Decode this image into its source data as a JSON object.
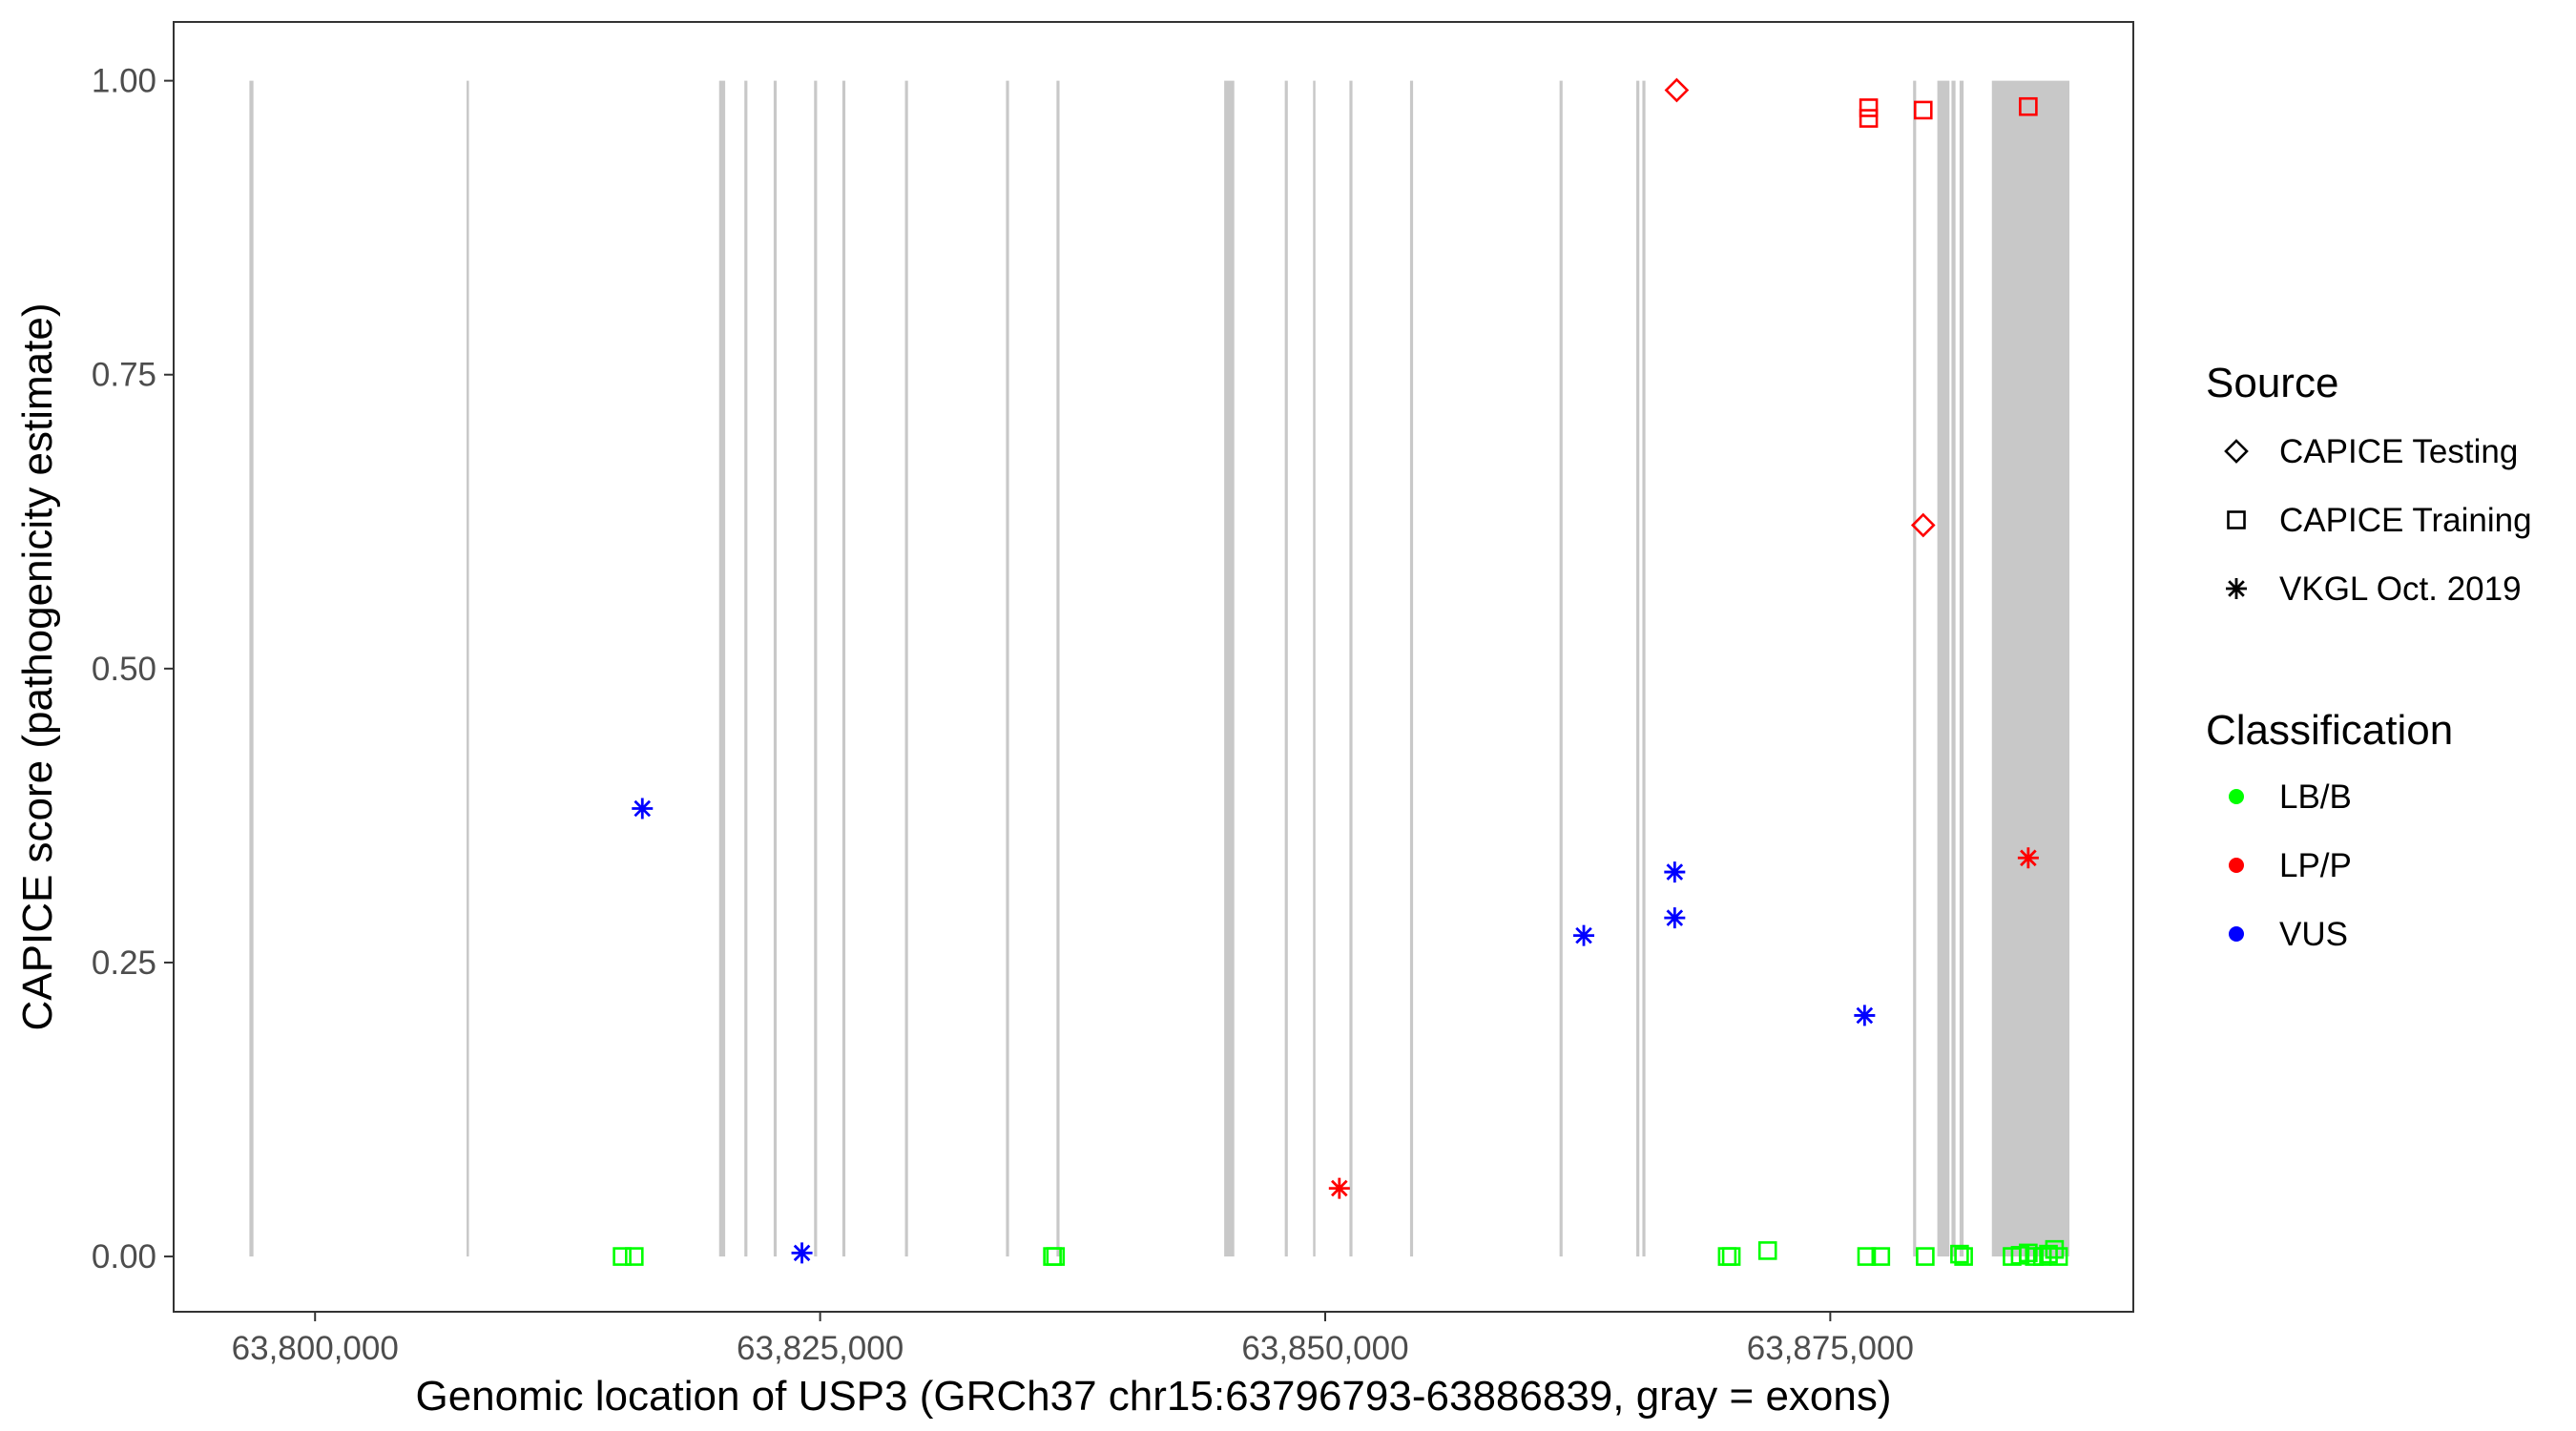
{
  "chart_data": {
    "type": "scatter",
    "title": "",
    "xlabel": "Genomic location of USP3 (GRCh37 chr15:63796793-63886839, gray = exons)",
    "ylabel": "CAPICE score (pathogenicity estimate)",
    "xlim": [
      63793000,
      63890000
    ],
    "ylim": [
      -0.047,
      1.05
    ],
    "x_ticks": [
      63800000,
      63825000,
      63850000,
      63875000
    ],
    "x_tick_labels": [
      "63,800,000",
      "63,825,000",
      "63,850,000",
      "63,875,000"
    ],
    "y_ticks": [
      0,
      0.25,
      0.5,
      0.75,
      1
    ],
    "y_tick_labels": [
      "0.00",
      "0.25",
      "0.50",
      "0.75",
      "1.00"
    ],
    "grid": false,
    "exons": [
      [
        63796750,
        63796950
      ],
      [
        63807500,
        63807600
      ],
      [
        63820000,
        63820300
      ],
      [
        63821250,
        63821400
      ],
      [
        63822700,
        63822850
      ],
      [
        63824700,
        63824850
      ],
      [
        63826100,
        63826250
      ],
      [
        63829200,
        63829350
      ],
      [
        63834200,
        63834350
      ],
      [
        63836700,
        63836850
      ],
      [
        63845000,
        63845500
      ],
      [
        63848000,
        63848150
      ],
      [
        63849400,
        63849500
      ],
      [
        63851200,
        63851350
      ],
      [
        63854200,
        63854350
      ],
      [
        63861600,
        63861750
      ],
      [
        63865400,
        63865550
      ],
      [
        63865700,
        63865850
      ],
      [
        63879100,
        63879250
      ],
      [
        63880300,
        63880900
      ],
      [
        63881000,
        63881200
      ],
      [
        63881400,
        63881600
      ],
      [
        63883000,
        63886839
      ]
    ],
    "legend": {
      "placement": "right",
      "source_title": "Source",
      "classification_title": "Classification",
      "source_entries": [
        {
          "label": "CAPICE Testing",
          "shape": "diamond"
        },
        {
          "label": "CAPICE Training",
          "shape": "square"
        },
        {
          "label": "VKGL Oct. 2019",
          "shape": "asterisk"
        }
      ],
      "classification_entries": [
        {
          "label": "LB/B",
          "color": "#00ff00"
        },
        {
          "label": "LP/P",
          "color": "#ff0000"
        },
        {
          "label": "VUS",
          "color": "#0000ff"
        }
      ]
    },
    "colors": {
      "LB/B": "#00ff00",
      "LP/P": "#ff0000",
      "VUS": "#0000ff",
      "exon": "#c8c8c8"
    },
    "points": [
      {
        "x": 63815200,
        "y": 0.0,
        "source": "CAPICE Training",
        "class": "LB/B"
      },
      {
        "x": 63815800,
        "y": 0.0,
        "source": "CAPICE Training",
        "class": "LB/B"
      },
      {
        "x": 63836500,
        "y": 0.0,
        "source": "CAPICE Training",
        "class": "LB/B"
      },
      {
        "x": 63836650,
        "y": 0.0,
        "source": "CAPICE Training",
        "class": "LB/B"
      },
      {
        "x": 63869900,
        "y": 0.0,
        "source": "CAPICE Training",
        "class": "LB/B"
      },
      {
        "x": 63870100,
        "y": 0.0,
        "source": "CAPICE Training",
        "class": "LB/B"
      },
      {
        "x": 63871900,
        "y": 0.005,
        "source": "CAPICE Training",
        "class": "LB/B"
      },
      {
        "x": 63876800,
        "y": 0.0,
        "source": "CAPICE Training",
        "class": "LB/B"
      },
      {
        "x": 63877500,
        "y": 0.0,
        "source": "CAPICE Training",
        "class": "LB/B"
      },
      {
        "x": 63879700,
        "y": 0.0,
        "source": "CAPICE Training",
        "class": "LB/B"
      },
      {
        "x": 63881400,
        "y": 0.002,
        "source": "CAPICE Training",
        "class": "LB/B"
      },
      {
        "x": 63881600,
        "y": 0.0,
        "source": "CAPICE Training",
        "class": "LB/B"
      },
      {
        "x": 63884000,
        "y": 0.0,
        "source": "CAPICE Training",
        "class": "LB/B"
      },
      {
        "x": 63884400,
        "y": 0.001,
        "source": "CAPICE Training",
        "class": "LB/B"
      },
      {
        "x": 63884800,
        "y": 0.003,
        "source": "CAPICE Training",
        "class": "LB/B"
      },
      {
        "x": 63885100,
        "y": 0.0,
        "source": "CAPICE Training",
        "class": "LB/B"
      },
      {
        "x": 63885500,
        "y": 0.0,
        "source": "CAPICE Training",
        "class": "LB/B"
      },
      {
        "x": 63885800,
        "y": 0.002,
        "source": "CAPICE Training",
        "class": "LB/B"
      },
      {
        "x": 63886100,
        "y": 0.006,
        "source": "CAPICE Training",
        "class": "LB/B"
      },
      {
        "x": 63886300,
        "y": 0.0,
        "source": "CAPICE Training",
        "class": "LB/B"
      },
      {
        "x": 63876900,
        "y": 0.977,
        "source": "CAPICE Training",
        "class": "LP/P"
      },
      {
        "x": 63876900,
        "y": 0.968,
        "source": "CAPICE Training",
        "class": "LP/P"
      },
      {
        "x": 63879600,
        "y": 0.975,
        "source": "CAPICE Training",
        "class": "LP/P"
      },
      {
        "x": 63884800,
        "y": 0.978,
        "source": "CAPICE Training",
        "class": "LP/P"
      },
      {
        "x": 63867400,
        "y": 0.992,
        "source": "CAPICE Testing",
        "class": "LP/P"
      },
      {
        "x": 63879600,
        "y": 0.622,
        "source": "CAPICE Testing",
        "class": "LP/P"
      },
      {
        "x": 63884800,
        "y": 0.339,
        "source": "VKGL Oct. 2019",
        "class": "LP/P"
      },
      {
        "x": 63850700,
        "y": 0.058,
        "source": "VKGL Oct. 2019",
        "class": "LP/P"
      },
      {
        "x": 63816200,
        "y": 0.381,
        "source": "VKGL Oct. 2019",
        "class": "VUS"
      },
      {
        "x": 63824100,
        "y": 0.003,
        "source": "VKGL Oct. 2019",
        "class": "VUS"
      },
      {
        "x": 63862800,
        "y": 0.273,
        "source": "VKGL Oct. 2019",
        "class": "VUS"
      },
      {
        "x": 63867300,
        "y": 0.327,
        "source": "VKGL Oct. 2019",
        "class": "VUS"
      },
      {
        "x": 63867300,
        "y": 0.288,
        "source": "VKGL Oct. 2019",
        "class": "VUS"
      },
      {
        "x": 63876700,
        "y": 0.205,
        "source": "VKGL Oct. 2019",
        "class": "VUS"
      }
    ]
  }
}
